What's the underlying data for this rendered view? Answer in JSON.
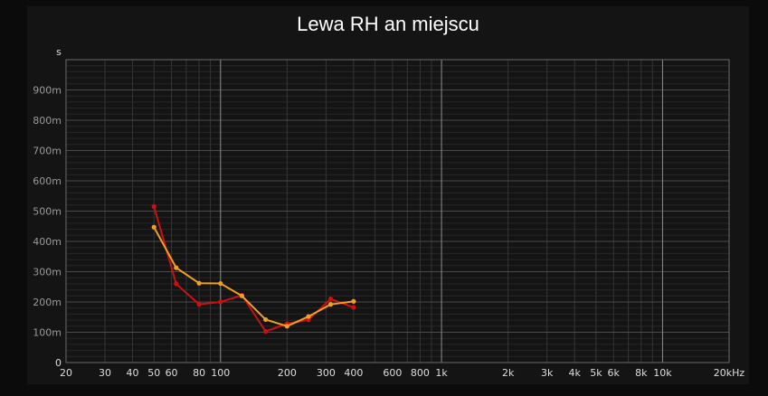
{
  "chart_data": {
    "type": "line",
    "title": "Lewa RH an miejscu",
    "ylabel": "s",
    "xlabel": "",
    "xscale": "log",
    "xlim": [
      20,
      20000
    ],
    "ylim": [
      0,
      1.0
    ],
    "x_ticks": [
      {
        "value": 20,
        "label": "20"
      },
      {
        "value": 30,
        "label": "30"
      },
      {
        "value": 40,
        "label": "40"
      },
      {
        "value": 50,
        "label": "50"
      },
      {
        "value": 60,
        "label": "60"
      },
      {
        "value": 80,
        "label": "80"
      },
      {
        "value": 100,
        "label": "100"
      },
      {
        "value": 200,
        "label": "200"
      },
      {
        "value": 300,
        "label": "300"
      },
      {
        "value": 400,
        "label": "400"
      },
      {
        "value": 600,
        "label": "600"
      },
      {
        "value": 800,
        "label": "800"
      },
      {
        "value": 1000,
        "label": "1k"
      },
      {
        "value": 2000,
        "label": "2k"
      },
      {
        "value": 3000,
        "label": "3k"
      },
      {
        "value": 4000,
        "label": "4k"
      },
      {
        "value": 5000,
        "label": "5k"
      },
      {
        "value": 6000,
        "label": "6k"
      },
      {
        "value": 8000,
        "label": "8k"
      },
      {
        "value": 10000,
        "label": "10k"
      },
      {
        "value": 20000,
        "label": "20kHz"
      }
    ],
    "y_ticks": [
      {
        "value": 0,
        "label": "0"
      },
      {
        "value": 0.1,
        "label": "100m"
      },
      {
        "value": 0.2,
        "label": "200m"
      },
      {
        "value": 0.3,
        "label": "300m"
      },
      {
        "value": 0.4,
        "label": "400m"
      },
      {
        "value": 0.5,
        "label": "500m"
      },
      {
        "value": 0.6,
        "label": "600m"
      },
      {
        "value": 0.7,
        "label": "700m"
      },
      {
        "value": 0.8,
        "label": "800m"
      },
      {
        "value": 0.9,
        "label": "900m"
      }
    ],
    "grid": true,
    "series": [
      {
        "color": "#cc1111",
        "x": [
          50,
          63,
          80,
          100,
          125,
          160,
          200,
          250,
          315,
          400
        ],
        "y": [
          0.515,
          0.26,
          0.192,
          0.2,
          0.222,
          0.103,
          0.128,
          0.141,
          0.21,
          0.182
        ]
      },
      {
        "color": "#f0a020",
        "x": [
          50,
          63,
          80,
          100,
          125,
          160,
          200,
          250,
          315,
          400
        ],
        "y": [
          0.447,
          0.313,
          0.262,
          0.261,
          0.22,
          0.142,
          0.12,
          0.152,
          0.192,
          0.202
        ]
      }
    ]
  }
}
